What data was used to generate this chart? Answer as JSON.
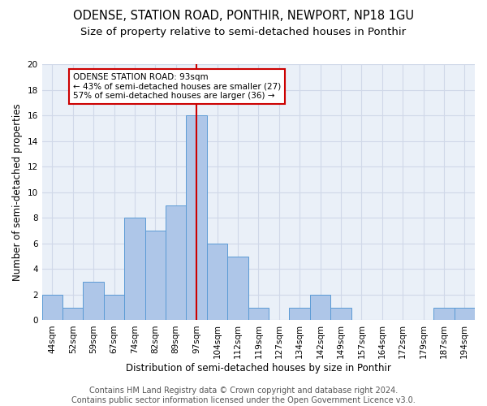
{
  "title_line1": "ODENSE, STATION ROAD, PONTHIR, NEWPORT, NP18 1GU",
  "title_line2": "Size of property relative to semi-detached houses in Ponthir",
  "xlabel": "Distribution of semi-detached houses by size in Ponthir",
  "ylabel": "Number of semi-detached properties",
  "categories": [
    "44sqm",
    "52sqm",
    "59sqm",
    "67sqm",
    "74sqm",
    "82sqm",
    "89sqm",
    "97sqm",
    "104sqm",
    "112sqm",
    "119sqm",
    "127sqm",
    "134sqm",
    "142sqm",
    "149sqm",
    "157sqm",
    "164sqm",
    "172sqm",
    "179sqm",
    "187sqm",
    "194sqm"
  ],
  "values": [
    2,
    1,
    3,
    2,
    8,
    7,
    9,
    16,
    6,
    5,
    1,
    0,
    1,
    2,
    1,
    0,
    0,
    0,
    0,
    1,
    1
  ],
  "bar_color": "#aec6e8",
  "bar_edge_color": "#5b9bd5",
  "grid_color": "#d0d8e8",
  "background_color": "#eaf0f8",
  "vline_x_index": 7,
  "vline_color": "#cc0000",
  "annotation_text": "ODENSE STATION ROAD: 93sqm\n← 43% of semi-detached houses are smaller (27)\n57% of semi-detached houses are larger (36) →",
  "annotation_box_color": "#cc0000",
  "ylim": [
    0,
    20
  ],
  "yticks": [
    0,
    2,
    4,
    6,
    8,
    10,
    12,
    14,
    16,
    18,
    20
  ],
  "footer_text": "Contains HM Land Registry data © Crown copyright and database right 2024.\nContains public sector information licensed under the Open Government Licence v3.0.",
  "title_fontsize": 10.5,
  "subtitle_fontsize": 9.5,
  "axis_label_fontsize": 8.5,
  "tick_fontsize": 7.5,
  "footer_fontsize": 7
}
